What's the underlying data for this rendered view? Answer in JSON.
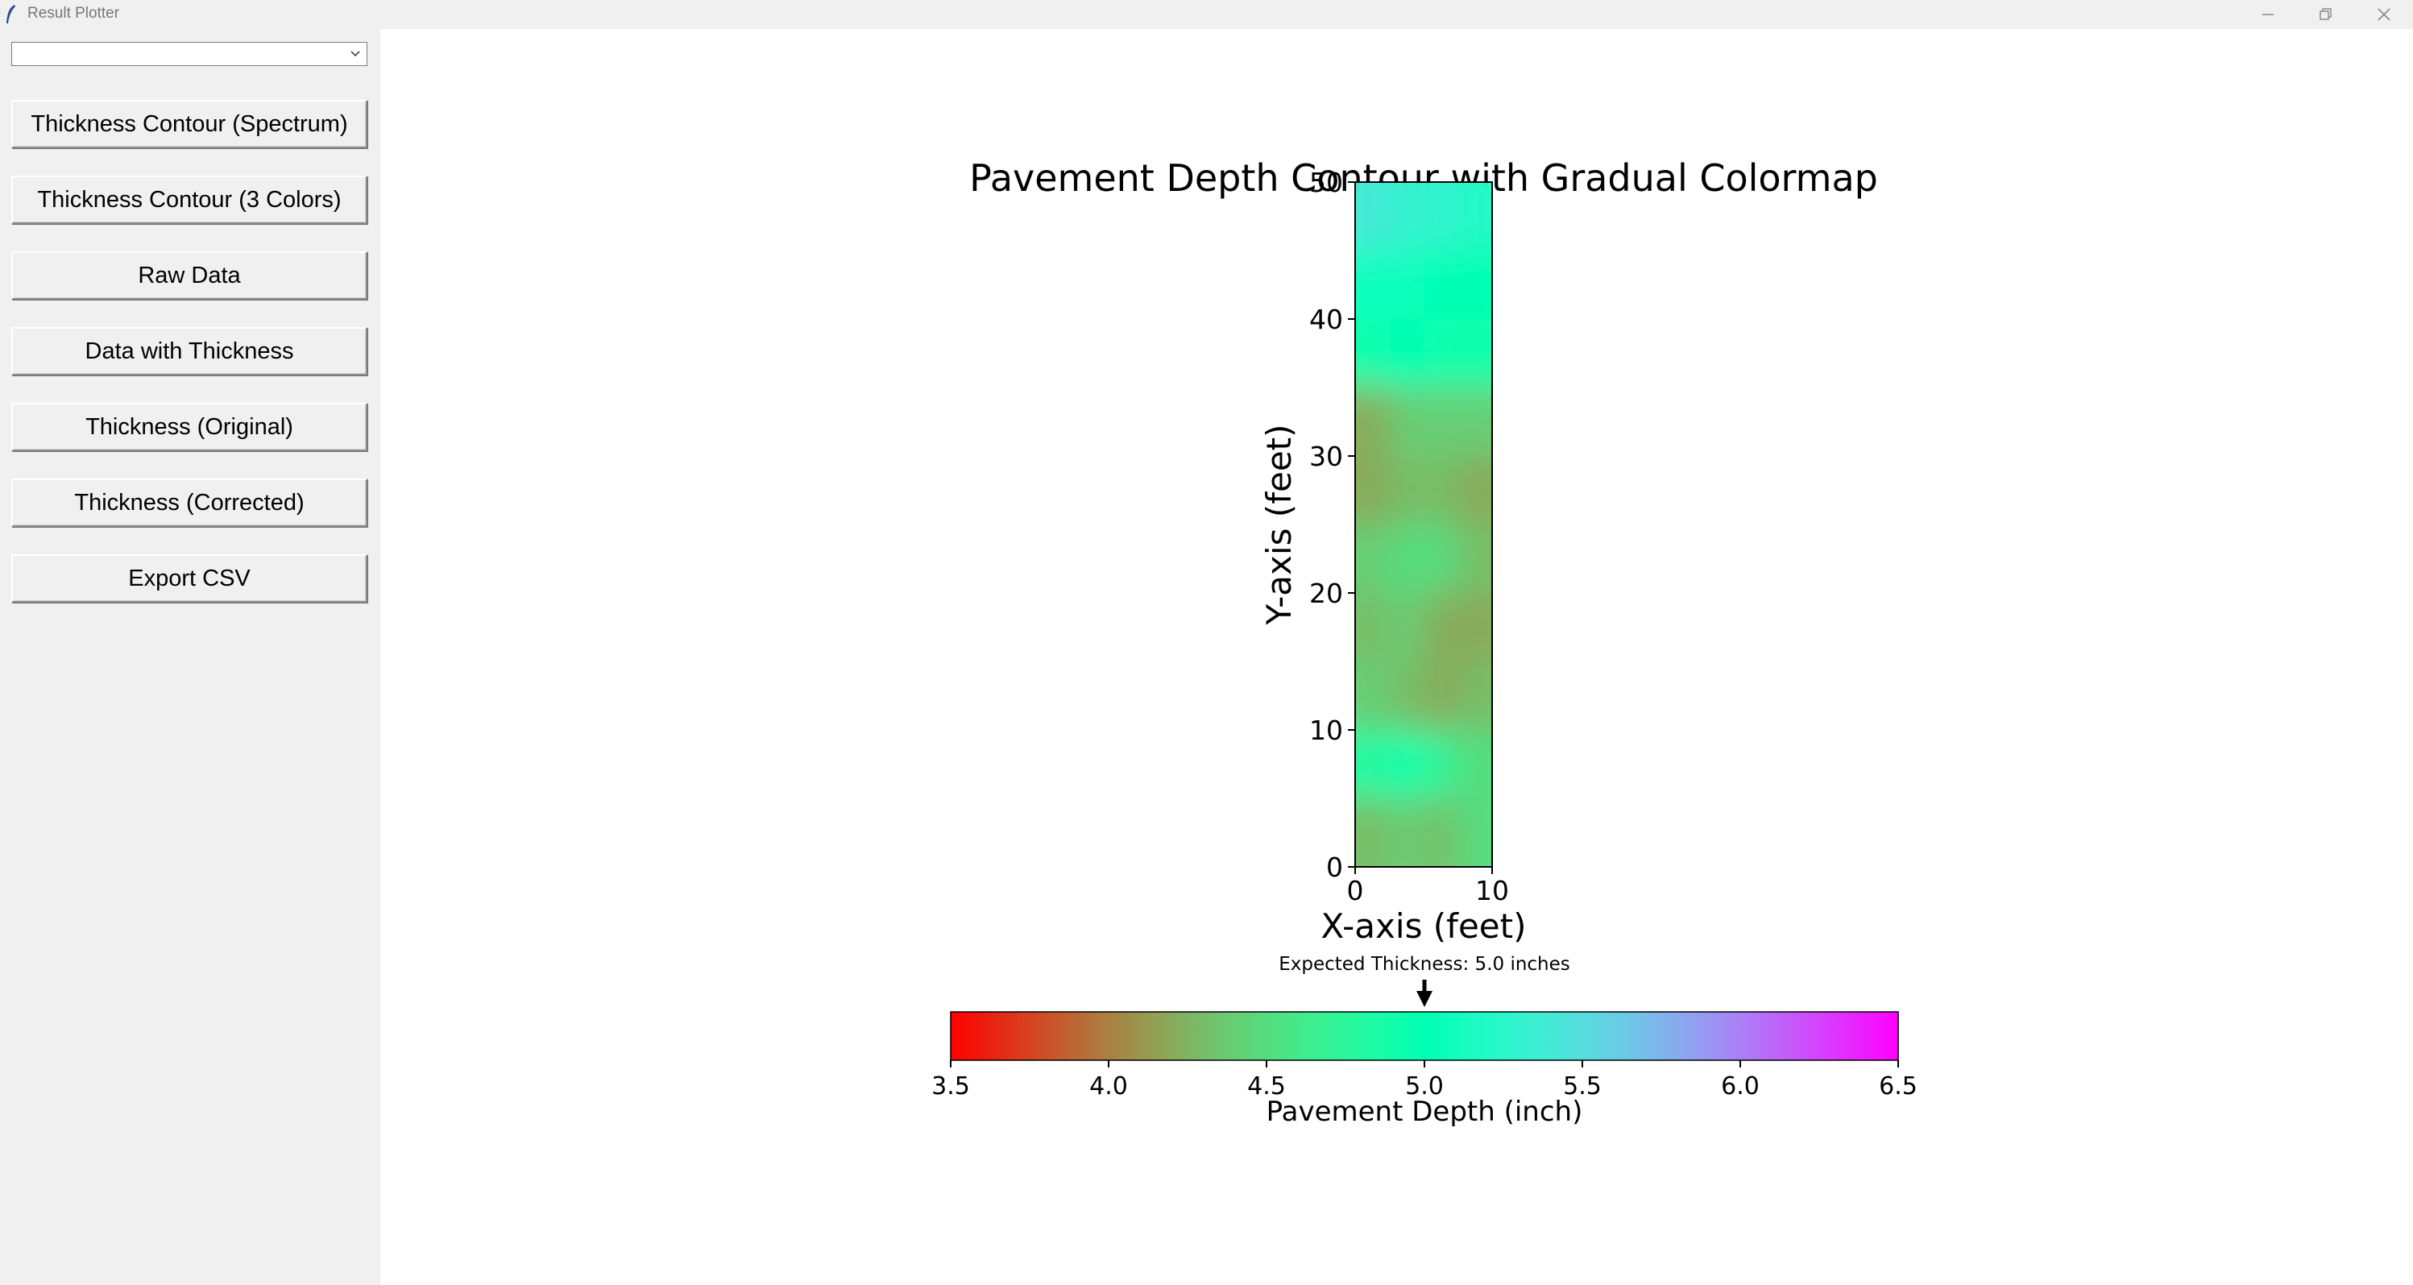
{
  "window": {
    "title": "Result Plotter",
    "controls": [
      "minimize-icon",
      "restore-icon",
      "close-icon"
    ]
  },
  "sidebar": {
    "dropdown": {
      "value": "",
      "icon": "chevron-down-icon"
    },
    "buttons": [
      {
        "label": "Thickness Contour (Spectrum)"
      },
      {
        "label": "Thickness Contour (3 Colors)"
      },
      {
        "label": "Raw Data"
      },
      {
        "label": "Data with Thickness"
      },
      {
        "label": "Thickness (Original)"
      },
      {
        "label": "Thickness (Corrected)"
      },
      {
        "label": "Export CSV"
      }
    ]
  },
  "chart_data": {
    "type": "heatmap",
    "title": "Pavement Depth Contour with Gradual Colormap",
    "xlabel": "X-axis (feet)",
    "ylabel": "Y-axis (feet)",
    "xlim": [
      0,
      10
    ],
    "ylim": [
      0,
      50
    ],
    "xticks": [
      "0",
      "10"
    ],
    "yticks": [
      "0",
      "10",
      "20",
      "30",
      "40",
      "50"
    ],
    "x": [
      1.25,
      3.75,
      6.25,
      8.75
    ],
    "y": [
      2.5,
      7.5,
      12.5,
      17.5,
      22.5,
      27.5,
      32.5,
      37.5,
      42.5,
      47.5
    ],
    "z": [
      [
        4.3,
        4.4,
        4.3,
        4.5
      ],
      [
        4.8,
        4.9,
        4.7,
        4.5
      ],
      [
        4.4,
        4.3,
        4.2,
        4.3
      ],
      [
        4.3,
        4.4,
        4.2,
        4.2
      ],
      [
        4.4,
        4.5,
        4.5,
        4.3
      ],
      [
        4.2,
        4.3,
        4.3,
        4.2
      ],
      [
        4.2,
        4.4,
        4.4,
        4.4
      ],
      [
        4.9,
        5.0,
        4.9,
        4.9
      ],
      [
        5.1,
        5.1,
        5.0,
        5.0
      ],
      [
        5.4,
        5.3,
        5.3,
        5.2
      ]
    ],
    "colorbar": {
      "label": "Pavement Depth (inch)",
      "min": 3.5,
      "max": 6.5,
      "ticks": [
        "3.5",
        "4.0",
        "4.5",
        "5.0",
        "5.5",
        "6.0",
        "6.5"
      ],
      "colormap": "rainbow_r"
    },
    "annotation": {
      "text": "Expected Thickness: 5.0 inches",
      "value": 5.0
    }
  }
}
